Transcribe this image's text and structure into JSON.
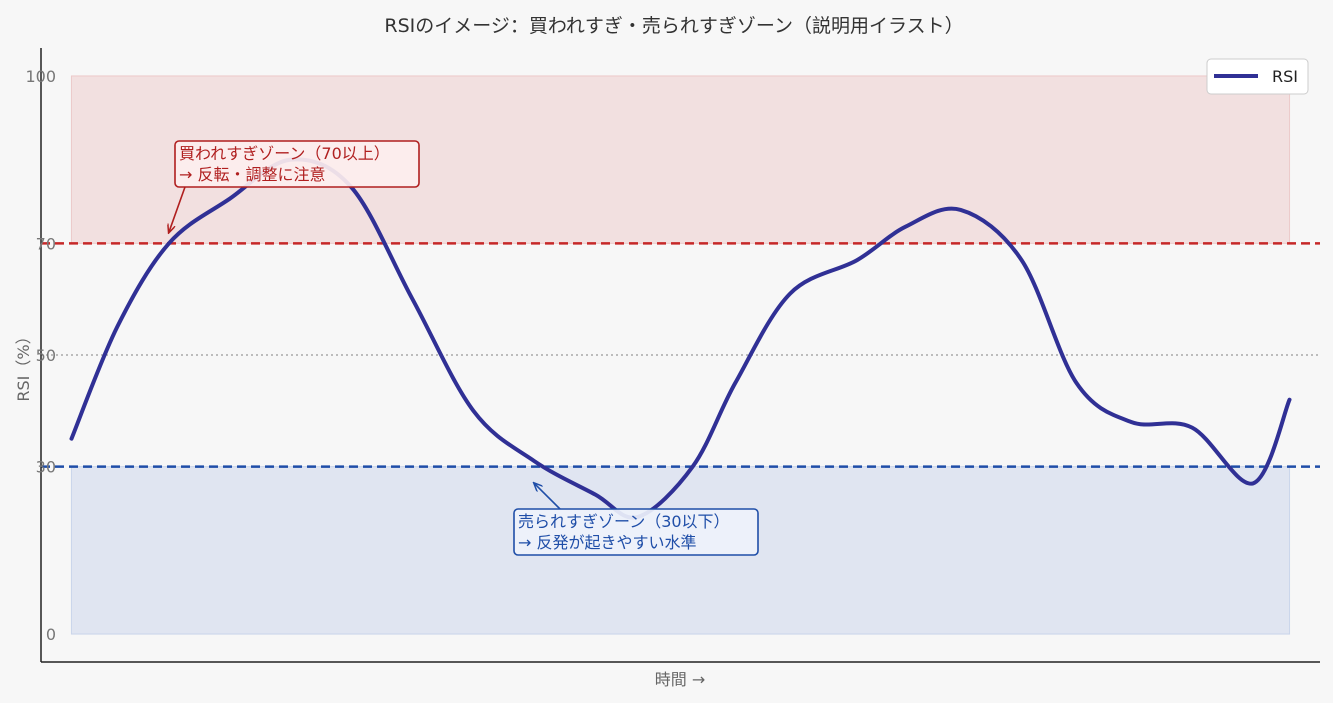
{
  "chart_data": {
    "type": "line",
    "title": "RSIのイメージ：買われすぎ・売られすぎゾーン（説明用イラスト）",
    "xlabel": "時間 →",
    "ylabel": "RSI（%）",
    "ylim": [
      -5,
      105
    ],
    "xlim": [
      -0.5,
      20.5
    ],
    "yticks": [
      {
        "value": 0,
        "label": "0",
        "color": "#777777"
      },
      {
        "value": 30,
        "label": "30",
        "color": "#1f4ea8"
      },
      {
        "value": 50,
        "label": "50",
        "color": "#777777"
      },
      {
        "value": 70,
        "label": "70",
        "color": "#c62828"
      },
      {
        "value": 100,
        "label": "100",
        "color": "#777777"
      }
    ],
    "series": [
      {
        "name": "RSI",
        "color": "#303095",
        "x": [
          0,
          0.75,
          1.6,
          2.6,
          3.6,
          4.6,
          5.6,
          6.6,
          7.6,
          8.6,
          9.3,
          10.2,
          10.9,
          11.8,
          12.9,
          13.7,
          14.6,
          15.6,
          16.5,
          17.4,
          18.4,
          19.4,
          20.0
        ],
        "values": [
          35,
          55,
          70,
          78,
          85,
          80,
          60,
          40,
          31,
          25,
          21,
          30,
          45,
          61,
          67,
          73,
          76,
          67,
          45,
          38,
          37,
          27,
          42
        ]
      }
    ],
    "bands": [
      {
        "name": "overbought-zone",
        "from": 70,
        "to": 100,
        "color": "#e8b4b4"
      },
      {
        "name": "oversold-zone",
        "from": 0,
        "to": 30,
        "color": "#b4c4e4"
      }
    ],
    "hlines": [
      {
        "name": "overbought-line",
        "value": 70,
        "color": "#c62828",
        "style": "dashed"
      },
      {
        "name": "midline",
        "value": 50,
        "color": "#999999",
        "style": "dotted"
      },
      {
        "name": "oversold-line",
        "value": 30,
        "color": "#1f4ea8",
        "style": "dashed"
      }
    ],
    "annotations": [
      {
        "name": "overbought-annotation",
        "lines": [
          "買われすぎゾーン（70以上）",
          "→ 反転・調整に注意"
        ],
        "point": {
          "x": 1.6,
          "y": 72
        },
        "color": "#b01f1f",
        "background": "#fdeeee"
      },
      {
        "name": "oversold-annotation",
        "lines": [
          "売られすぎゾーン（30以下）",
          "→ 反発が起きやすい水準"
        ],
        "point": {
          "x": 7.6,
          "y": 27
        },
        "color": "#1f4ea8",
        "background": "#eef2fb"
      }
    ],
    "legend": {
      "position": "top-right",
      "entries": [
        "RSI"
      ]
    },
    "grid": false
  }
}
